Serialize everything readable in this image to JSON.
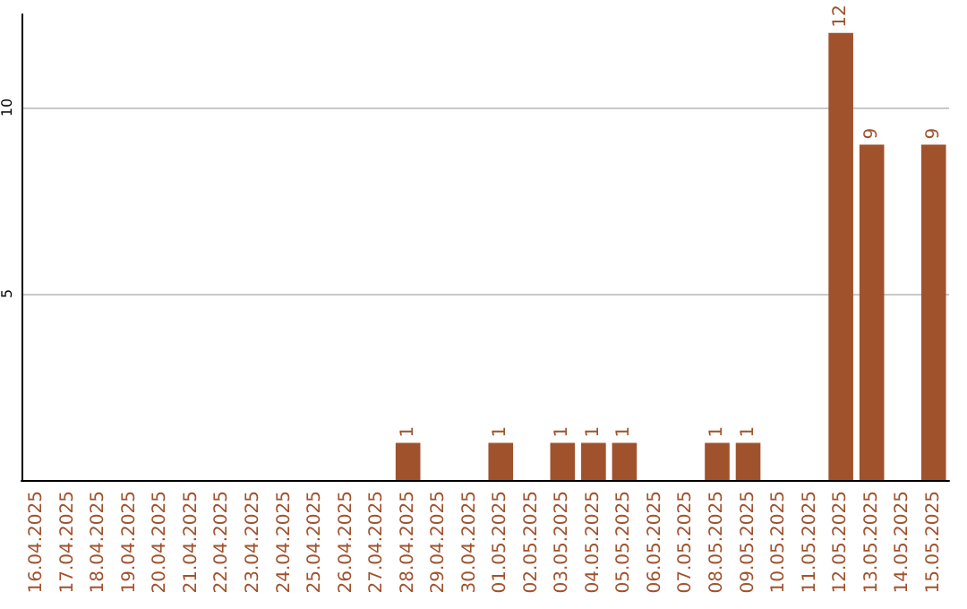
{
  "chart_data": {
    "type": "bar",
    "categories": [
      "16.04.2025",
      "17.04.2025",
      "18.04.2025",
      "19.04.2025",
      "20.04.2025",
      "21.04.2025",
      "22.04.2025",
      "23.04.2025",
      "24.04.2025",
      "25.04.2025",
      "26.04.2025",
      "27.04.2025",
      "28.04.2025",
      "29.04.2025",
      "30.04.2025",
      "01.05.2025",
      "02.05.2025",
      "03.05.2025",
      "04.05.2025",
      "05.05.2025",
      "06.05.2025",
      "07.05.2025",
      "08.05.2025",
      "09.05.2025",
      "10.05.2025",
      "11.05.2025",
      "12.05.2025",
      "13.05.2025",
      "14.05.2025",
      "15.05.2025"
    ],
    "values": [
      0,
      0,
      0,
      0,
      0,
      0,
      0,
      0,
      0,
      0,
      0,
      0,
      1,
      0,
      0,
      1,
      0,
      1,
      1,
      1,
      0,
      0,
      1,
      1,
      0,
      0,
      12,
      9,
      0,
      9
    ],
    "value_labels": [
      null,
      null,
      null,
      null,
      null,
      null,
      null,
      null,
      null,
      null,
      null,
      null,
      "1",
      null,
      null,
      "1",
      null,
      "1",
      "1",
      "1",
      null,
      null,
      "1",
      "1",
      null,
      null,
      "12",
      "9",
      null,
      "9"
    ],
    "color": "#a0522d",
    "ylim": [
      0,
      12.5
    ],
    "yticks": [
      5,
      10
    ],
    "grid": "y"
  }
}
